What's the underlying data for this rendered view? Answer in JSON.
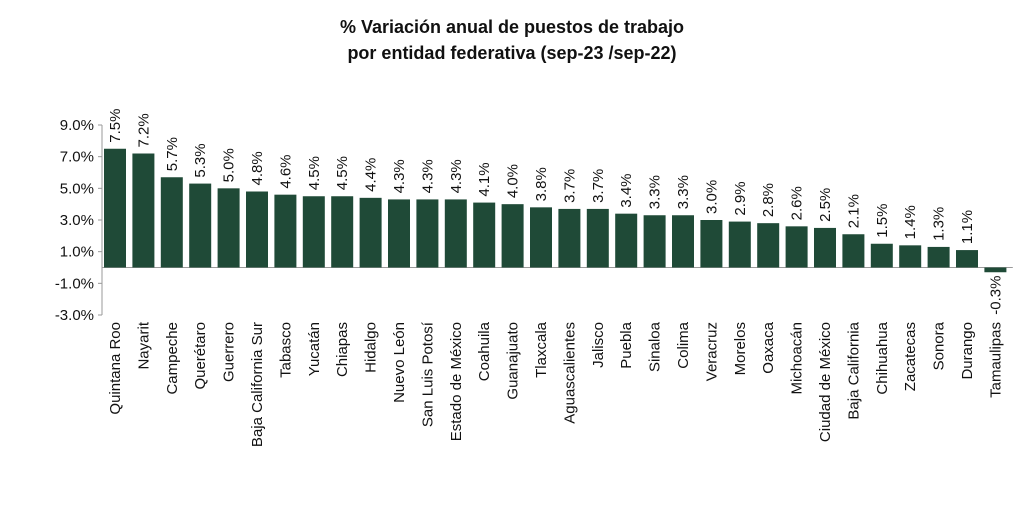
{
  "title_lines": [
    "% Variación anual de puestos de trabajo",
    "por entidad federativa (sep-23 /sep-22)"
  ],
  "chart_data": {
    "type": "bar",
    "title": "% Variación anual de puestos de trabajo por entidad federativa (sep-23 /sep-22)",
    "categories": [
      "Quintana Roo",
      "Nayarit",
      "Campeche",
      "Querétaro",
      "Guerrero",
      "Baja California Sur",
      "Tabasco",
      "Yucatán",
      "Chiapas",
      "Hidalgo",
      "Nuevo León",
      "San Luis Potosí",
      "Estado de México",
      "Coahuila",
      "Guanajuato",
      "Tlaxcala",
      "Aguascalientes",
      "Jalisco",
      "Puebla",
      "Sinaloa",
      "Colima",
      "Veracruz",
      "Morelos",
      "Oaxaca",
      "Michoacán",
      "Ciudad de México",
      "Baja California",
      "Chihuahua",
      "Zacatecas",
      "Sonora",
      "Durango",
      "Tamaulipas"
    ],
    "values": [
      7.5,
      7.2,
      5.7,
      5.3,
      5.0,
      4.8,
      4.6,
      4.5,
      4.5,
      4.4,
      4.3,
      4.3,
      4.3,
      4.1,
      4.0,
      3.8,
      3.7,
      3.7,
      3.4,
      3.3,
      3.3,
      3.0,
      2.9,
      2.8,
      2.6,
      2.5,
      2.1,
      1.5,
      1.4,
      1.3,
      1.1,
      -0.3
    ],
    "data_labels": [
      "7.5%",
      "7.2%",
      "5.7%",
      "5.3%",
      "5.0%",
      "4.8%",
      "4.6%",
      "4.5%",
      "4.5%",
      "4.4%",
      "4.3%",
      "4.3%",
      "4.3%",
      "4.1%",
      "4.0%",
      "3.8%",
      "3.7%",
      "3.7%",
      "3.4%",
      "3.3%",
      "3.3%",
      "3.0%",
      "2.9%",
      "2.8%",
      "2.6%",
      "2.5%",
      "2.1%",
      "1.5%",
      "1.4%",
      "1.3%",
      "1.1%",
      "-0.3%"
    ],
    "yticks": [
      "9.0%",
      "7.0%",
      "5.0%",
      "3.0%",
      "1.0%",
      "-1.0%",
      "-3.0%"
    ],
    "ytick_values": [
      9,
      7,
      5,
      3,
      1,
      -1,
      -3
    ],
    "ylim": [
      -3,
      9
    ],
    "xlabel": "",
    "ylabel": "",
    "legend": "none",
    "grid": false,
    "bar_color": "#1f4a37"
  }
}
